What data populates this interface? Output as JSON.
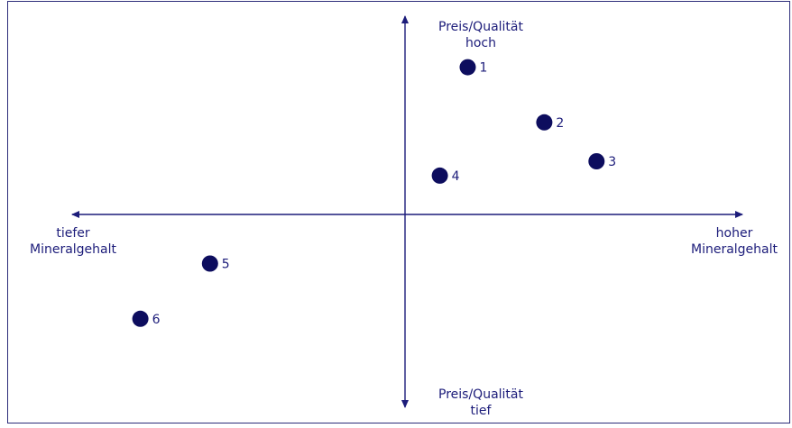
{
  "axes": {
    "top": [
      "Preis/Qualität",
      "hoch"
    ],
    "bottom": [
      "Preis/Qualität",
      "tief"
    ],
    "left": [
      "tiefer",
      "Mineralgehalt"
    ],
    "right": [
      "hoher",
      "Mineralgehalt"
    ]
  },
  "colors": {
    "axis": "#1c1c7a",
    "point": "#0d0d5e",
    "frame": "#2d2d7a"
  },
  "points": [
    {
      "label": "1",
      "mineral": 0.18,
      "price": 0.72
    },
    {
      "label": "2",
      "mineral": 0.4,
      "price": 0.45
    },
    {
      "label": "3",
      "mineral": 0.55,
      "price": 0.26
    },
    {
      "label": "4",
      "mineral": 0.1,
      "price": 0.19
    },
    {
      "label": "5",
      "mineral": -0.56,
      "price": -0.24
    },
    {
      "label": "6",
      "mineral": -0.76,
      "price": -0.51
    }
  ]
}
